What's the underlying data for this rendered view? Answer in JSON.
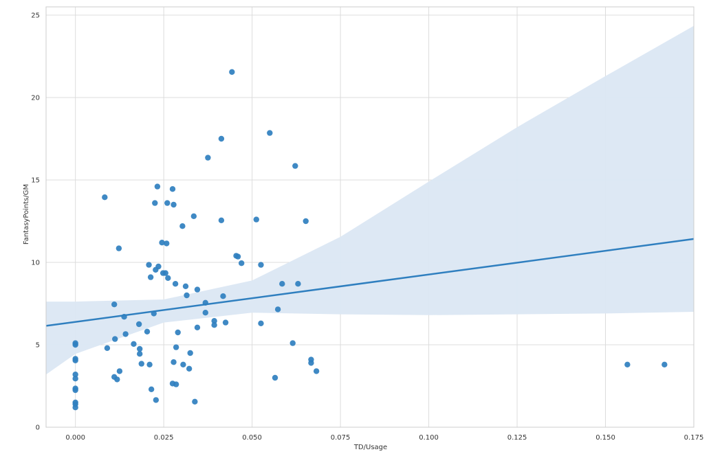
{
  "chart_data": {
    "type": "scatter",
    "title": "",
    "xlabel": "TD/Usage",
    "ylabel": "FantasyPoints/GM",
    "xlim": [
      -0.0083,
      0.175
    ],
    "ylim": [
      0,
      25.5
    ],
    "x_ticks": [
      "0.000",
      "0.025",
      "0.050",
      "0.075",
      "0.100",
      "0.125",
      "0.150",
      "0.175"
    ],
    "y_ticks": [
      "0",
      "5",
      "10",
      "15",
      "20",
      "25"
    ],
    "grid": true,
    "colors": {
      "points": "#2f7fbf",
      "line": "#2f7fbf",
      "band": "#dbe7f3",
      "grid": "#dcdcdc",
      "frame": "#cccccc"
    },
    "points": [
      {
        "x": 0.0,
        "y": 5.1
      },
      {
        "x": 0.0,
        "y": 5.0
      },
      {
        "x": 0.0,
        "y": 4.15
      },
      {
        "x": 0.0,
        "y": 4.05
      },
      {
        "x": 0.0,
        "y": 3.2
      },
      {
        "x": 0.0,
        "y": 2.95
      },
      {
        "x": 0.0,
        "y": 2.35
      },
      {
        "x": 0.0,
        "y": 2.25
      },
      {
        "x": 0.0,
        "y": 1.5
      },
      {
        "x": 0.0,
        "y": 1.4
      },
      {
        "x": 0.0,
        "y": 1.2
      },
      {
        "x": 0.0083,
        "y": 13.95
      },
      {
        "x": 0.009,
        "y": 4.8
      },
      {
        "x": 0.011,
        "y": 7.45
      },
      {
        "x": 0.011,
        "y": 3.05
      },
      {
        "x": 0.0112,
        "y": 5.35
      },
      {
        "x": 0.0118,
        "y": 2.9
      },
      {
        "x": 0.0123,
        "y": 10.85
      },
      {
        "x": 0.0125,
        "y": 3.4
      },
      {
        "x": 0.0138,
        "y": 6.7
      },
      {
        "x": 0.0142,
        "y": 5.65
      },
      {
        "x": 0.0165,
        "y": 5.05
      },
      {
        "x": 0.018,
        "y": 6.25
      },
      {
        "x": 0.0182,
        "y": 4.75
      },
      {
        "x": 0.0182,
        "y": 4.45
      },
      {
        "x": 0.0187,
        "y": 3.85
      },
      {
        "x": 0.0203,
        "y": 5.8
      },
      {
        "x": 0.0208,
        "y": 9.85
      },
      {
        "x": 0.021,
        "y": 3.8
      },
      {
        "x": 0.0213,
        "y": 9.1
      },
      {
        "x": 0.0215,
        "y": 2.3
      },
      {
        "x": 0.0222,
        "y": 6.9
      },
      {
        "x": 0.0225,
        "y": 13.6
      },
      {
        "x": 0.0227,
        "y": 9.55
      },
      {
        "x": 0.0228,
        "y": 1.65
      },
      {
        "x": 0.0232,
        "y": 14.6
      },
      {
        "x": 0.0235,
        "y": 9.75
      },
      {
        "x": 0.0245,
        "y": 11.2
      },
      {
        "x": 0.0248,
        "y": 9.35
      },
      {
        "x": 0.0255,
        "y": 9.35
      },
      {
        "x": 0.0258,
        "y": 11.15
      },
      {
        "x": 0.026,
        "y": 13.6
      },
      {
        "x": 0.0262,
        "y": 9.05
      },
      {
        "x": 0.0275,
        "y": 14.45
      },
      {
        "x": 0.0275,
        "y": 2.65
      },
      {
        "x": 0.0278,
        "y": 13.5
      },
      {
        "x": 0.0278,
        "y": 3.95
      },
      {
        "x": 0.0283,
        "y": 8.7
      },
      {
        "x": 0.0285,
        "y": 4.85
      },
      {
        "x": 0.0285,
        "y": 2.6
      },
      {
        "x": 0.029,
        "y": 5.75
      },
      {
        "x": 0.0303,
        "y": 12.2
      },
      {
        "x": 0.0305,
        "y": 3.8
      },
      {
        "x": 0.0312,
        "y": 8.55
      },
      {
        "x": 0.0315,
        "y": 8.0
      },
      {
        "x": 0.0322,
        "y": 3.55
      },
      {
        "x": 0.0325,
        "y": 4.5
      },
      {
        "x": 0.0335,
        "y": 12.8
      },
      {
        "x": 0.0338,
        "y": 1.55
      },
      {
        "x": 0.0345,
        "y": 6.05
      },
      {
        "x": 0.0345,
        "y": 8.35
      },
      {
        "x": 0.0368,
        "y": 7.55
      },
      {
        "x": 0.0368,
        "y": 6.95
      },
      {
        "x": 0.0375,
        "y": 16.35
      },
      {
        "x": 0.0393,
        "y": 6.45
      },
      {
        "x": 0.0393,
        "y": 6.2
      },
      {
        "x": 0.0413,
        "y": 17.5
      },
      {
        "x": 0.0413,
        "y": 12.55
      },
      {
        "x": 0.0418,
        "y": 7.95
      },
      {
        "x": 0.0425,
        "y": 6.35
      },
      {
        "x": 0.0443,
        "y": 21.55
      },
      {
        "x": 0.0455,
        "y": 10.4
      },
      {
        "x": 0.046,
        "y": 10.35
      },
      {
        "x": 0.047,
        "y": 9.95
      },
      {
        "x": 0.0512,
        "y": 12.6
      },
      {
        "x": 0.0525,
        "y": 9.85
      },
      {
        "x": 0.0525,
        "y": 6.3
      },
      {
        "x": 0.055,
        "y": 17.85
      },
      {
        "x": 0.0565,
        "y": 3.0
      },
      {
        "x": 0.0573,
        "y": 7.15
      },
      {
        "x": 0.0585,
        "y": 8.7
      },
      {
        "x": 0.0615,
        "y": 5.1
      },
      {
        "x": 0.0622,
        "y": 15.85
      },
      {
        "x": 0.063,
        "y": 8.7
      },
      {
        "x": 0.0652,
        "y": 12.5
      },
      {
        "x": 0.0667,
        "y": 4.1
      },
      {
        "x": 0.0667,
        "y": 3.9
      },
      {
        "x": 0.0682,
        "y": 3.4
      },
      {
        "x": 0.1562,
        "y": 3.8
      },
      {
        "x": 0.1667,
        "y": 3.8
      }
    ],
    "regression_line": {
      "x": [
        -0.0083,
        0.175
      ],
      "y": [
        6.15,
        11.42
      ]
    },
    "confidence_band": {
      "x": [
        -0.0083,
        0.0,
        0.025,
        0.05,
        0.075,
        0.1,
        0.125,
        0.15,
        0.175
      ],
      "upper": [
        7.62,
        7.62,
        7.75,
        8.9,
        11.55,
        14.9,
        18.2,
        21.3,
        24.35
      ],
      "lower": [
        3.2,
        4.45,
        6.35,
        6.95,
        6.85,
        6.8,
        6.85,
        6.9,
        7.0
      ]
    }
  }
}
